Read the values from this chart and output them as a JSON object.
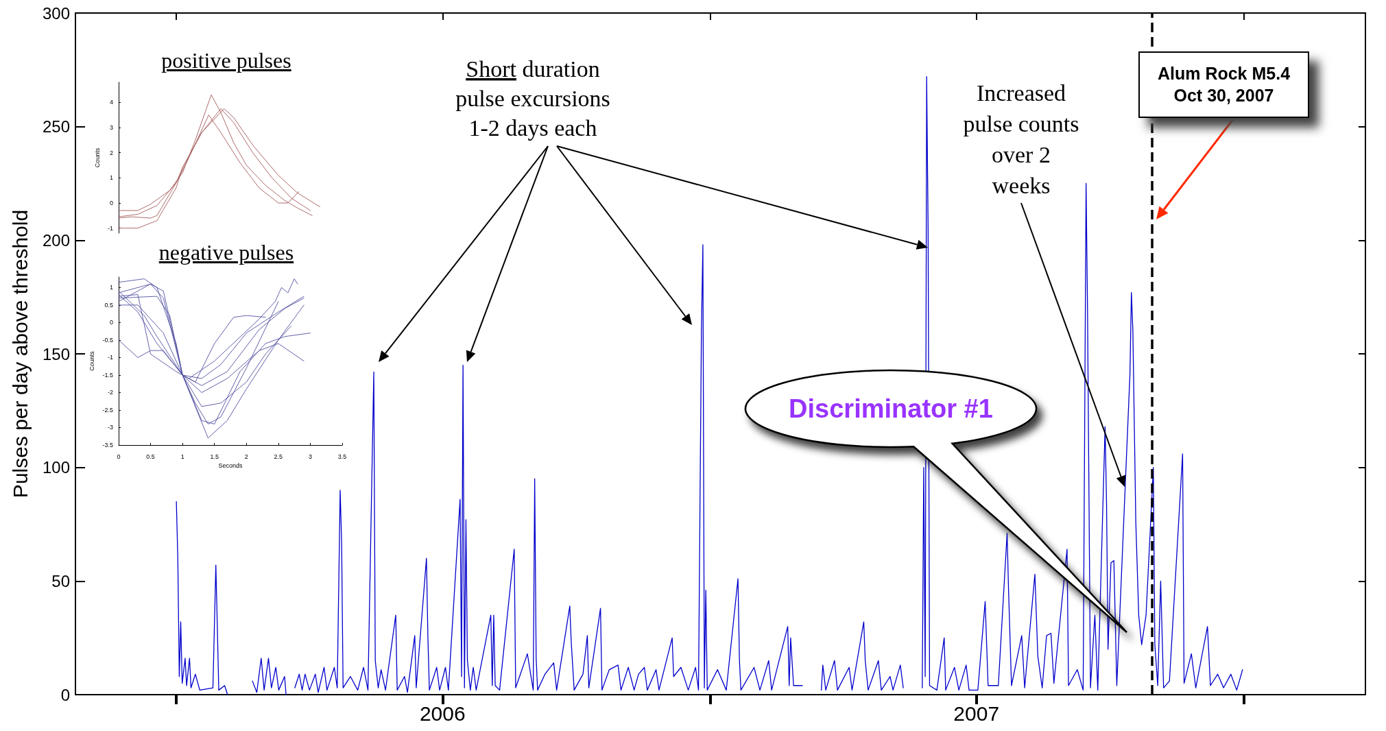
{
  "chart_data": [
    {
      "type": "line",
      "ylabel": "Pulses per day above threshold",
      "color": "#0000cc",
      "marker": "none",
      "xlim": [
        "2005-10-24",
        "2008-03-24"
      ],
      "xticks": [
        {
          "value": "2006-01-01",
          "label": null
        },
        {
          "value": "2006-07-02",
          "label": "2006"
        },
        {
          "value": "2007-01-01",
          "label": null
        },
        {
          "value": "2007-07-02",
          "label": "2007"
        },
        {
          "value": "2008-01-01",
          "label": null
        }
      ],
      "ylim": [
        0,
        300
      ],
      "yticks": [
        0,
        50,
        100,
        150,
        200,
        250,
        300
      ],
      "annotations": [
        "Short duration\npulse excursions\n1-2 days each",
        "Increased\npulse counts\nover 2\nweeks",
        "Discriminator #1"
      ],
      "ref_lines": [
        {
          "axis": "x",
          "value": "2007-10-30",
          "label": "Alum Rock M5.4\nOct 30, 2007",
          "color": "#000000",
          "line_style": "dashed"
        }
      ],
      "x": [
        "2006-01-01",
        "2006-01-02",
        "2006-01-03",
        "2006-01-04",
        "2006-01-05",
        "2006-01-07",
        "2006-01-08",
        "2006-01-10",
        "2006-01-11",
        "2006-01-14",
        "2006-01-17",
        "2006-01-26",
        "2006-01-28",
        "2006-01-29",
        "2006-01-30",
        "2006-02-03",
        "2006-02-05",
        "2006-02-06",
        "2006-02-22",
        "2006-02-25",
        "2006-02-28",
        "2006-03-02",
        "2006-03-05",
        "2006-03-07",
        "2006-03-10",
        "2006-03-12",
        "2006-03-16",
        "2006-03-17",
        "2006-03-18",
        "2006-03-23",
        "2006-03-26",
        "2006-03-28",
        "2006-03-30",
        "2006-04-02",
        "2006-04-06",
        "2006-04-08",
        "2006-04-12",
        "2006-04-14",
        "2006-04-19",
        "2006-04-21",
        "2006-04-23",
        "2006-04-24",
        "2006-04-25",
        "2006-04-30",
        "2006-05-05",
        "2006-05-09",
        "2006-05-12",
        "2006-05-15",
        "2006-05-16",
        "2006-05-17",
        "2006-05-19",
        "2006-05-21",
        "2006-05-24",
        "2006-05-31",
        "2006-06-01",
        "2006-06-06",
        "2006-06-08",
        "2006-06-13",
        "2006-06-14",
        "2006-06-21",
        "2006-06-22",
        "2006-06-23",
        "2006-06-28",
        "2006-06-30",
        "2006-07-04",
        "2006-07-06",
        "2006-07-14",
        "2006-07-15",
        "2006-07-16",
        "2006-07-17",
        "2006-07-18",
        "2006-07-19",
        "2006-07-21",
        "2006-07-23",
        "2006-07-25",
        "2006-08-04",
        "2006-08-05",
        "2006-08-06",
        "2006-08-07",
        "2006-08-10",
        "2006-08-20",
        "2006-08-21",
        "2006-08-29",
        "2006-09-02",
        "2006-09-03",
        "2006-09-04",
        "2006-09-05",
        "2006-09-10",
        "2006-09-16",
        "2006-09-18",
        "2006-09-27",
        "2006-09-28",
        "2006-09-30",
        "2006-10-06",
        "2006-10-09",
        "2006-10-10",
        "2006-10-18",
        "2006-10-19",
        "2006-10-24",
        "2006-10-30",
        "2006-11-01",
        "2006-11-06",
        "2006-11-10",
        "2006-11-13",
        "2006-11-17",
        "2006-11-19",
        "2006-11-25",
        "2006-11-27",
        "2006-12-06",
        "2006-12-07",
        "2006-12-12",
        "2006-12-17",
        "2006-12-22",
        "2006-12-24",
        "2006-12-26",
        "2006-12-27",
        "2006-12-28",
        "2006-12-29",
        "2006-12-30",
        "2007-01-06",
        "2007-01-12",
        "2007-01-20",
        "2007-01-21",
        "2007-01-22",
        "2007-01-31",
        "2007-02-04",
        "2007-02-10",
        "2007-02-12",
        "2007-02-23",
        "2007-02-24",
        "2007-02-25",
        "2007-02-27",
        "2007-03-05",
        "2007-03-06",
        "2007-03-18",
        "2007-03-19",
        "2007-03-21",
        "2007-03-27",
        "2007-03-29",
        "2007-04-06",
        "2007-04-08",
        "2007-04-16",
        "2007-04-17",
        "2007-04-19",
        "2007-04-26",
        "2007-04-28",
        "2007-05-04",
        "2007-05-06",
        "2007-05-11",
        "2007-05-13",
        "2007-05-14",
        "2007-05-26",
        "2007-05-27",
        "2007-05-28",
        "2007-05-29",
        "2007-05-30",
        "2007-05-31",
        "2007-06-05",
        "2007-06-10",
        "2007-06-11",
        "2007-06-17",
        "2007-06-20",
        "2007-06-25",
        "2007-06-27",
        "2007-07-03",
        "2007-07-08",
        "2007-07-10",
        "2007-07-17",
        "2007-07-23",
        "2007-07-24",
        "2007-07-26",
        "2007-08-02",
        "2007-08-04",
        "2007-08-11",
        "2007-08-13",
        "2007-08-16",
        "2007-08-19",
        "2007-08-22",
        "2007-08-24",
        "2007-09-02",
        "2007-09-03",
        "2007-09-09",
        "2007-09-13",
        "2007-09-15",
        "2007-09-16",
        "2007-09-18",
        "2007-09-21",
        "2007-09-23",
        "2007-09-28",
        "2007-09-29",
        "2007-09-30",
        "2007-10-02",
        "2007-10-04",
        "2007-10-06",
        "2007-10-15",
        "2007-10-16",
        "2007-10-17",
        "2007-10-19",
        "2007-10-21",
        "2007-10-23",
        "2007-10-26",
        "2007-10-31",
        "2007-11-01",
        "2007-11-03",
        "2007-11-05",
        "2007-11-07",
        "2007-11-11",
        "2007-11-20",
        "2007-11-21",
        "2007-11-26",
        "2007-11-29",
        "2007-12-07",
        "2007-12-09",
        "2007-12-14",
        "2007-12-18",
        "2007-12-23",
        "2007-12-27",
        "2007-12-31"
      ],
      "values": [
        85,
        60,
        8,
        32,
        5,
        16,
        4,
        16,
        3,
        9,
        2,
        3,
        57,
        30,
        2,
        4,
        0,
        null,
        6,
        1,
        16,
        2,
        16,
        3,
        12,
        2,
        8,
        0,
        null,
        3,
        9,
        2,
        9,
        2,
        9,
        1,
        12,
        2,
        12,
        3,
        90,
        67,
        3,
        8,
        2,
        12,
        2,
        107,
        142,
        15,
        3,
        11,
        2,
        35,
        2,
        8,
        1,
        26,
        3,
        60,
        25,
        2,
        12,
        2,
        12,
        2,
        86,
        8,
        145,
        3,
        77,
        15,
        2,
        12,
        2,
        35,
        4,
        35,
        4,
        2,
        64,
        3,
        18,
        2,
        95,
        16,
        2,
        9,
        14,
        2,
        39,
        23,
        2,
        9,
        26,
        3,
        38,
        2,
        11,
        13,
        2,
        12,
        2,
        9,
        12,
        2,
        11,
        2,
        25,
        8,
        12,
        2,
        12,
        2,
        160,
        198,
        3,
        46,
        2,
        11,
        2,
        51,
        15,
        2,
        12,
        2,
        15,
        2,
        30,
        4,
        25,
        4,
        4,
        null,
        2,
        13,
        2,
        15,
        2,
        12,
        2,
        32,
        15,
        2,
        15,
        2,
        8,
        2,
        13,
        3,
        null,
        3,
        100,
        8,
        272,
        205,
        4,
        2,
        25,
        2,
        12,
        2,
        13,
        2,
        2,
        41,
        4,
        4,
        71,
        46,
        4,
        26,
        3,
        53,
        17,
        3,
        26,
        27,
        5,
        64,
        4,
        11,
        2,
        225,
        169,
        3,
        35,
        2,
        118,
        84,
        20,
        58,
        59,
        4,
        141,
        177,
        160,
        76,
        35,
        22,
        35,
        100,
        22,
        4,
        50,
        3,
        6,
        106,
        5,
        18,
        3,
        30,
        4,
        9,
        3,
        9,
        2,
        11
      ]
    },
    {
      "type": "line",
      "title": "positive pulses",
      "ylabel": "Counts",
      "marker": "none",
      "tick_labels": "y",
      "xlim": [
        0,
        3.5
      ],
      "ylim": [
        -1.2,
        4.8
      ],
      "yticks": [
        -1,
        0,
        1,
        2,
        3,
        4
      ],
      "series": [
        {
          "color": "#a55a5a",
          "x": [
            0,
            0.3,
            0.5,
            0.8,
            1.0,
            1.2,
            1.45,
            1.6,
            1.8,
            2.0,
            2.3,
            2.6,
            2.8,
            3.03
          ],
          "values": [
            -0.3,
            -0.3,
            -0.05,
            0.5,
            1.2,
            2.5,
            4.3,
            3.6,
            2.4,
            1.5,
            0.7,
            0.1,
            -0.2,
            -0.5
          ]
        },
        {
          "color": "#a55a5a",
          "x": [
            0,
            0.3,
            0.6,
            0.9,
            1.1,
            1.41,
            1.6,
            1.9,
            2.2,
            2.5,
            2.65,
            2.82
          ],
          "values": [
            -0.55,
            -0.45,
            -0.1,
            0.8,
            1.8,
            3.5,
            2.8,
            1.6,
            0.6,
            0.0,
            0.0,
            0.45
          ]
        },
        {
          "color": "#a55a5a",
          "x": [
            0,
            0.3,
            0.6,
            0.9,
            1.0,
            1.3,
            1.6,
            1.8,
            2.1,
            2.4,
            2.7,
            3.0
          ],
          "values": [
            -1.0,
            -1.0,
            -0.7,
            0.6,
            1.4,
            2.8,
            3.75,
            3.2,
            2.0,
            1.0,
            0.2,
            -0.3
          ]
        },
        {
          "color": "#a55a5a",
          "x": [
            0,
            0.2,
            0.5,
            0.6,
            0.9,
            1.0,
            1.3,
            1.65,
            1.8,
            2.1,
            2.5,
            2.8,
            3.15
          ],
          "values": [
            -0.6,
            -0.55,
            -0.6,
            -0.5,
            0.8,
            1.4,
            2.8,
            3.75,
            3.4,
            2.3,
            1.1,
            0.4,
            -0.15
          ]
        }
      ]
    },
    {
      "type": "line",
      "title": "negative pulses",
      "xlabel": "Seconds",
      "ylabel": "Counts",
      "marker": "none",
      "xlim": [
        0,
        3.5
      ],
      "xticks": [
        0,
        0.5,
        1,
        1.5,
        2,
        2.5,
        3,
        3.5
      ],
      "ylim": [
        -3.5,
        1.3
      ],
      "yticks": [
        -3.5,
        -3,
        -2.5,
        -2,
        -1.5,
        -1,
        -0.5,
        0,
        0.5,
        1
      ],
      "series": [
        {
          "color": "#5050a0",
          "x": [
            0,
            0.4,
            0.6,
            0.9,
            1.0,
            1.2,
            1.4,
            1.6,
            2.0,
            2.5
          ],
          "values": [
            1.15,
            1.25,
            1.0,
            -0.6,
            -1.5,
            -2.3,
            -2.9,
            -2.7,
            -1.3,
            0.6
          ]
        },
        {
          "color": "#5050a0",
          "x": [
            0,
            0.5,
            0.7,
            1.0,
            1.4,
            1.7,
            2.0,
            2.5,
            2.9
          ],
          "values": [
            0.85,
            1.1,
            0.9,
            -1.5,
            -3.3,
            -2.8,
            -1.9,
            -0.5,
            0.5
          ]
        },
        {
          "color": "#5050a0",
          "x": [
            0,
            0.3,
            0.7,
            1.0,
            1.3,
            1.6,
            2.0,
            2.5,
            2.9
          ],
          "values": [
            0.5,
            0.5,
            -0.3,
            -1.5,
            -1.6,
            -1.2,
            -0.3,
            0.3,
            0.75
          ]
        },
        {
          "color": "#5050a0",
          "x": [
            0,
            0.3,
            0.6,
            1.0,
            1.2,
            1.5,
            1.8,
            2.0,
            2.3
          ],
          "values": [
            0.8,
            0.3,
            -0.6,
            -1.5,
            -1.7,
            -0.6,
            0.15,
            0.2,
            0.15
          ]
        },
        {
          "color": "#5050a0",
          "x": [
            0,
            0.3,
            0.5,
            0.7,
            1.0,
            1.3,
            1.7,
            2.2,
            2.5,
            2.9
          ],
          "values": [
            -0.5,
            -1.0,
            -0.8,
            -0.8,
            -1.5,
            -2.0,
            -1.6,
            -0.8,
            -0.6,
            -1.1
          ]
        },
        {
          "color": "#5050a0",
          "x": [
            0,
            0.6,
            0.8,
            1.0,
            1.3,
            1.6,
            2.0,
            2.3,
            2.7
          ],
          "values": [
            0.7,
            0.75,
            0.2,
            -1.5,
            -2.4,
            -2.3,
            -1.7,
            -0.9,
            -0.1
          ]
        },
        {
          "color": "#5050a0",
          "x": [
            0,
            0.5,
            0.7,
            1.0,
            1.3,
            1.5,
            1.9,
            2.3,
            2.6,
            3.0
          ],
          "values": [
            0.6,
            1.1,
            0.7,
            -1.5,
            -2.8,
            -2.9,
            -1.4,
            -0.6,
            -0.4,
            -0.3
          ]
        },
        {
          "color": "#5050a0",
          "x": [
            0,
            0.3,
            0.5,
            0.9,
            1.1,
            1.5,
            2.2,
            2.45,
            2.55,
            2.65,
            2.75,
            2.8
          ],
          "values": [
            0.75,
            0.8,
            -0.9,
            -1.4,
            -1.6,
            -1.1,
            0.1,
            0.6,
            1.0,
            0.85,
            1.25,
            1.1
          ]
        },
        {
          "color": "#5050a0",
          "x": [
            0,
            0.4,
            0.6,
            1.0,
            1.3,
            1.7,
            2.2,
            2.6,
            2.9
          ],
          "values": [
            0.9,
            0.2,
            -0.4,
            -1.5,
            -1.8,
            -1.4,
            -0.2,
            0.4,
            0.7
          ]
        }
      ]
    }
  ]
}
